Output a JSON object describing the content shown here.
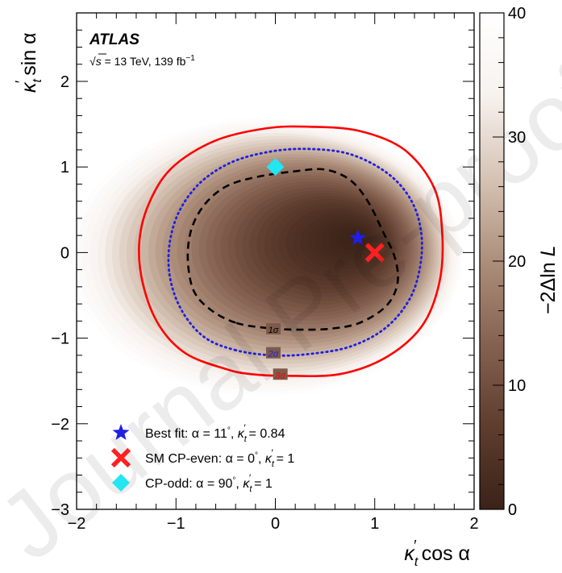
{
  "chart_data": {
    "type": "heatmap",
    "experiment": "ATLAS",
    "energy_lumi": {
      "sqrt_symbol": "√",
      "s": "s",
      "text": " = 13 TeV, 139 fb",
      "sup": "−1"
    },
    "xlabel": {
      "kappa": "κ",
      "sub": "t",
      "prime": "′",
      "rest": " cos α"
    },
    "ylabel": {
      "kappa": "κ",
      "sub": "t",
      "prime": "′",
      "rest": " sin α"
    },
    "zlabel": {
      "prefix": "−2Δ",
      "rest": "ln ",
      "var": "L"
    },
    "xlim": [
      -2,
      2
    ],
    "ylim": [
      -3,
      2.8
    ],
    "zlim": [
      0,
      40
    ],
    "x_ticks": [
      {
        "v": -2,
        "label": "−2"
      },
      {
        "v": -1,
        "label": "−1"
      },
      {
        "v": 0,
        "label": "0"
      },
      {
        "v": 1,
        "label": "1"
      },
      {
        "v": 2,
        "label": "2"
      }
    ],
    "y_ticks": [
      {
        "v": -3,
        "label": "−3"
      },
      {
        "v": -2,
        "label": "−2"
      },
      {
        "v": -1,
        "label": "−1"
      },
      {
        "v": 0,
        "label": "0"
      },
      {
        "v": 1,
        "label": "1"
      },
      {
        "v": 2,
        "label": "2"
      }
    ],
    "z_ticks": [
      {
        "v": 0,
        "label": "0"
      },
      {
        "v": 10,
        "label": "10"
      },
      {
        "v": 20,
        "label": "20"
      },
      {
        "v": 30,
        "label": "30"
      },
      {
        "v": 40,
        "label": "40"
      }
    ],
    "colormap": [
      "#3b2218",
      "#5e3d2e",
      "#856151",
      "#ad8e7b",
      "#d6c3b4",
      "#f7f2ee",
      "#ffffff"
    ],
    "heatmap_model": {
      "minimum": [
        0.83,
        0.17
      ],
      "outer_boundary_radii": [
        1.98,
        1.62
      ],
      "outer_boundary_center": [
        -0.1,
        -0.05
      ]
    },
    "contours": [
      {
        "name": "1σ",
        "label": "1σ",
        "color": "#000000",
        "style": "dashed",
        "label_at": [
          -0.02,
          -0.9
        ],
        "points": [
          [
            -0.4,
            -0.82
          ],
          [
            -0.65,
            -0.67
          ],
          [
            -0.82,
            -0.45
          ],
          [
            -0.88,
            -0.1
          ],
          [
            -0.85,
            0.25
          ],
          [
            -0.72,
            0.55
          ],
          [
            -0.5,
            0.77
          ],
          [
            -0.2,
            0.88
          ],
          [
            0.2,
            0.95
          ],
          [
            0.5,
            0.97
          ],
          [
            0.75,
            0.85
          ],
          [
            0.93,
            0.6
          ],
          [
            1.08,
            0.25
          ],
          [
            1.2,
            -0.05
          ],
          [
            1.23,
            -0.35
          ],
          [
            1.12,
            -0.62
          ],
          [
            0.85,
            -0.82
          ],
          [
            0.55,
            -0.89
          ],
          [
            0.2,
            -0.9
          ],
          [
            -0.1,
            -0.88
          ]
        ]
      },
      {
        "name": "2σ",
        "label": "2σ",
        "color": "#2020dd",
        "style": "dotted",
        "label_at": [
          -0.02,
          -1.18
        ],
        "points": [
          [
            -0.4,
            -1.14
          ],
          [
            -0.7,
            -1.0
          ],
          [
            -0.92,
            -0.72
          ],
          [
            -1.05,
            -0.35
          ],
          [
            -1.07,
            0.05
          ],
          [
            -0.98,
            0.45
          ],
          [
            -0.77,
            0.8
          ],
          [
            -0.45,
            1.05
          ],
          [
            -0.05,
            1.18
          ],
          [
            0.35,
            1.21
          ],
          [
            0.75,
            1.15
          ],
          [
            1.1,
            0.95
          ],
          [
            1.33,
            0.68
          ],
          [
            1.45,
            0.35
          ],
          [
            1.47,
            -0.05
          ],
          [
            1.37,
            -0.5
          ],
          [
            1.12,
            -0.87
          ],
          [
            0.75,
            -1.1
          ],
          [
            0.3,
            -1.19
          ],
          [
            -0.05,
            -1.2
          ]
        ]
      },
      {
        "name": "3σ",
        "label": "3σ",
        "color": "#ff0000",
        "style": "solid",
        "label_at": [
          0.05,
          -1.43
        ],
        "points": [
          [
            -0.5,
            -1.36
          ],
          [
            -0.9,
            -1.18
          ],
          [
            -1.17,
            -0.85
          ],
          [
            -1.33,
            -0.38
          ],
          [
            -1.37,
            0.1
          ],
          [
            -1.28,
            0.55
          ],
          [
            -1.05,
            0.98
          ],
          [
            -0.62,
            1.3
          ],
          [
            -0.1,
            1.45
          ],
          [
            0.35,
            1.47
          ],
          [
            0.85,
            1.42
          ],
          [
            1.3,
            1.2
          ],
          [
            1.6,
            0.75
          ],
          [
            1.68,
            0.2
          ],
          [
            1.65,
            -0.35
          ],
          [
            1.48,
            -0.85
          ],
          [
            1.12,
            -1.22
          ],
          [
            0.65,
            -1.42
          ],
          [
            0.1,
            -1.44
          ],
          [
            -0.25,
            -1.42
          ]
        ]
      }
    ],
    "points": [
      {
        "name": "best-fit",
        "x": 0.83,
        "y": 0.17,
        "marker": "star",
        "color": "#1f1fe6"
      },
      {
        "name": "sm-cp-even",
        "x": 1.0,
        "y": 0.0,
        "marker": "cross",
        "color": "#ff2020"
      },
      {
        "name": "cp-odd",
        "x": 0.0,
        "y": 1.0,
        "marker": "diamond",
        "color": "#22e6f2"
      }
    ],
    "legend": {
      "placement": "bottom-left",
      "entries": [
        {
          "marker": "star",
          "color": "#1f1fe6",
          "text": "Best fit: α = 11°, κ′t = 0.84",
          "parts": {
            "lead": "Best fit: ",
            "a": "α = 11",
            "deg": "°",
            "sep": ", ",
            "k": "κ",
            "sub": "t",
            "p": "′",
            "tail": " = 0.84"
          }
        },
        {
          "marker": "cross",
          "color": "#ff2020",
          "text": "SM CP-even: α = 0°, κ′t = 1",
          "parts": {
            "lead": "SM CP-even: ",
            "a": "α = 0",
            "deg": "°",
            "sep": ", ",
            "k": "κ",
            "sub": "t",
            "p": "′",
            "tail": " = 1"
          }
        },
        {
          "marker": "diamond",
          "color": "#22e6f2",
          "text": "CP-odd: α = 90°, κ′t = 1",
          "parts": {
            "lead": "CP-odd: ",
            "a": "α = 90",
            "deg": "°",
            "sep": ", ",
            "k": "κ",
            "sub": "t",
            "p": "′",
            "tail": " = 1"
          }
        }
      ]
    },
    "grid": false
  }
}
